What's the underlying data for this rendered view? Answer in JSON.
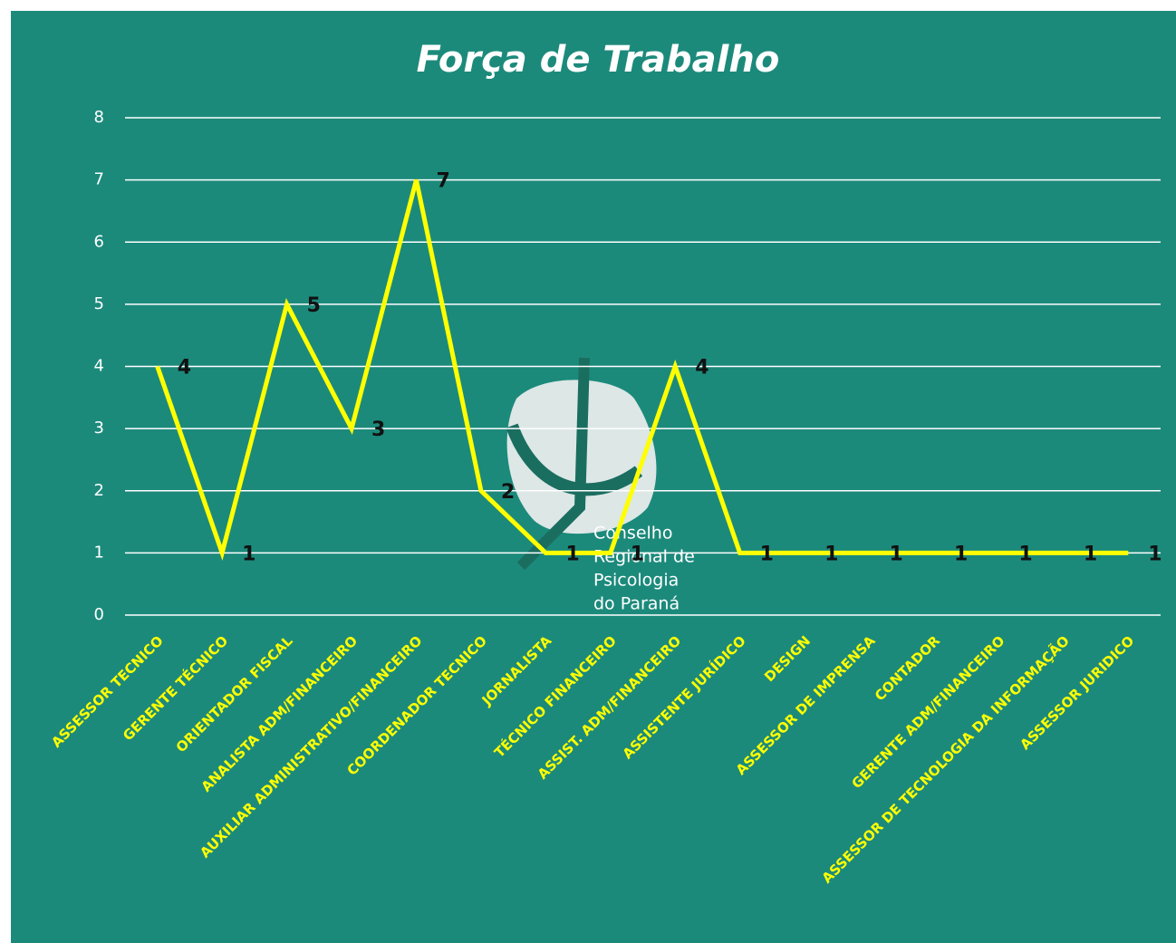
{
  "chart_data": {
    "type": "line",
    "title": "Força de Trabalho",
    "categories": [
      "ASSESSOR TECNICO",
      "GERENTE TÉCNICO",
      "ORIENTADOR FISCAL",
      "ANALISTA ADM/FINANCEIRO",
      "AUXILIAR ADMINISTRATIVO/FINANCEIRO",
      "COORDENADOR TECNICO",
      "JORNALISTA",
      "TÉCNICO FINANCEIRO",
      "ASSIST. ADM/FINANCEIRO",
      "ASSISTENTE JURÍDICO",
      "DESIGN",
      "ASSESSOR DE IMPRENSA",
      "CONTADOR",
      "GERENTE ADM/FINANCEIRO",
      "ASSESSOR DE TECNOLOGIA DA INFORMAÇÃO",
      "ASSESSOR JURIDICO"
    ],
    "values": [
      4,
      1,
      5,
      3,
      7,
      2,
      1,
      1,
      4,
      1,
      1,
      1,
      1,
      1,
      1,
      1
    ],
    "color": "#ffff00",
    "ylim": [
      0,
      8
    ],
    "yticks": [
      0,
      1,
      2,
      3,
      4,
      5,
      6,
      7,
      8
    ],
    "grid": true,
    "watermark": [
      "Conselho",
      "Regional de",
      "Psicologia",
      "do Paraná"
    ]
  }
}
